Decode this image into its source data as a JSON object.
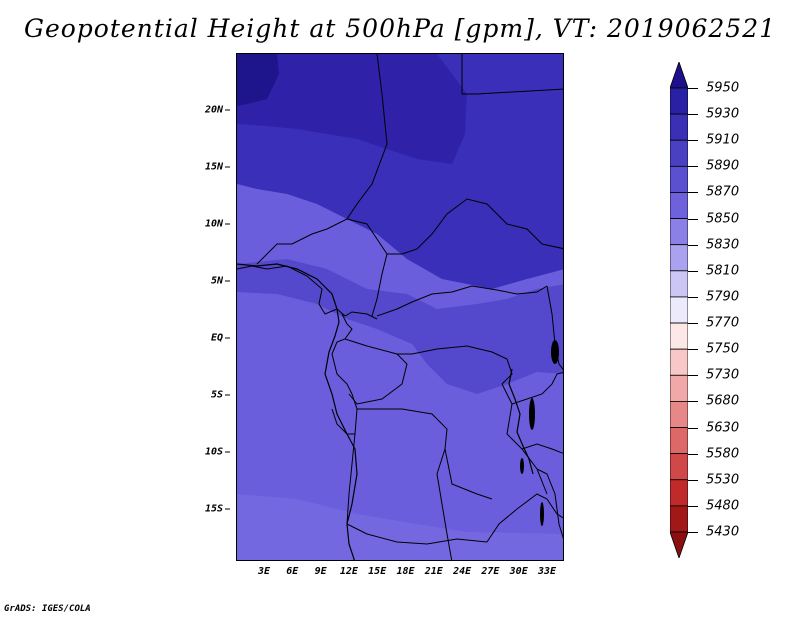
{
  "title": "Geopotential Height at 500hPa [gpm], VT: 2019062521",
  "footer": "GrADS: IGES/COLA",
  "lat_labels": [
    "20N",
    "15N",
    "10N",
    "5N",
    "EQ",
    "5S",
    "10S",
    "15S"
  ],
  "lon_labels": [
    "3E",
    "6E",
    "9E",
    "12E",
    "15E",
    "18E",
    "21E",
    "24E",
    "27E",
    "30E",
    "33E"
  ],
  "colorbar": {
    "levels": [
      "5950",
      "5930",
      "5910",
      "5890",
      "5870",
      "5850",
      "5830",
      "5810",
      "5790",
      "5770",
      "5750",
      "5730",
      "5680",
      "5630",
      "5580",
      "5530",
      "5480",
      "5430"
    ],
    "colors": [
      "#1e0f8c",
      "#2a20a5",
      "#3a30b5",
      "#4a40c2",
      "#5a50d0",
      "#6e62dc",
      "#8a80e6",
      "#aaa2ee",
      "#cbc6f4",
      "#eceafb",
      "#fde8e8",
      "#f8c8c8",
      "#f0a8a8",
      "#e68888",
      "#dc6868",
      "#d04848",
      "#c02a2a",
      "#a01818",
      "#8a1010"
    ]
  },
  "map_colors": {
    "deep": "#2f22a8",
    "north": "#3a2fb8",
    "mid": "#4a3fc6",
    "band": "#5448cc",
    "south": "#6a5edc",
    "far_south": "#7468e0",
    "nw_corner": "#1e148c"
  }
}
